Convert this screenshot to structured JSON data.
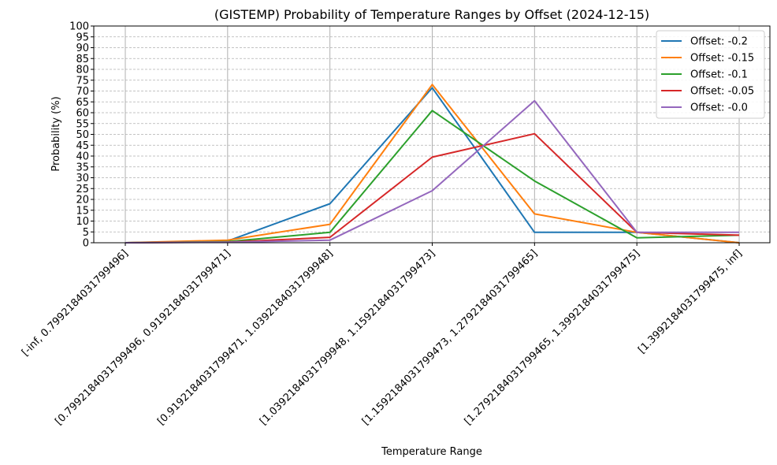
{
  "chart_data": {
    "type": "line",
    "title": "(GISTEMP) Probability of Temperature Ranges by Offset (2024-12-15)",
    "xlabel": "Temperature Range",
    "ylabel": "Probability (%)",
    "ylim": [
      0,
      100
    ],
    "yticks": [
      0,
      5,
      10,
      15,
      20,
      25,
      30,
      35,
      40,
      45,
      50,
      55,
      60,
      65,
      70,
      75,
      80,
      85,
      90,
      95,
      100
    ],
    "grid": "on",
    "legend_position": "top-right",
    "categories": [
      "[-inf, 0.7992184031799496]",
      "[0.7992184031799496, 0.9192184031799471]",
      "[0.9192184031799471, 1.0392184031799948]",
      "[1.0392184031799948, 1.1592184031799473]",
      "[1.1592184031799473, 1.2792184031799465]",
      "[1.2792184031799465, 1.3992184031799475]",
      "[1.3992184031799475, inf]"
    ],
    "series": [
      {
        "name": "Offset: -0.2",
        "color": "#1f77b4",
        "values": [
          0,
          0.8,
          18,
          71.5,
          4.8,
          4.8,
          0
        ]
      },
      {
        "name": "Offset: -0.15",
        "color": "#ff7f0e",
        "values": [
          0,
          1.2,
          8.5,
          73,
          13.3,
          4.8,
          0
        ]
      },
      {
        "name": "Offset: -0.1",
        "color": "#2ca02c",
        "values": [
          0,
          0.5,
          4.8,
          61,
          28.5,
          2.3,
          3.5
        ]
      },
      {
        "name": "Offset: -0.05",
        "color": "#d62728",
        "values": [
          0,
          0.3,
          2.5,
          39.5,
          50.3,
          4.8,
          3.5
        ]
      },
      {
        "name": "Offset: -0.0",
        "color": "#9467bd",
        "values": [
          0,
          0.2,
          1.2,
          24,
          65.5,
          4.8,
          4.8
        ]
      }
    ]
  }
}
